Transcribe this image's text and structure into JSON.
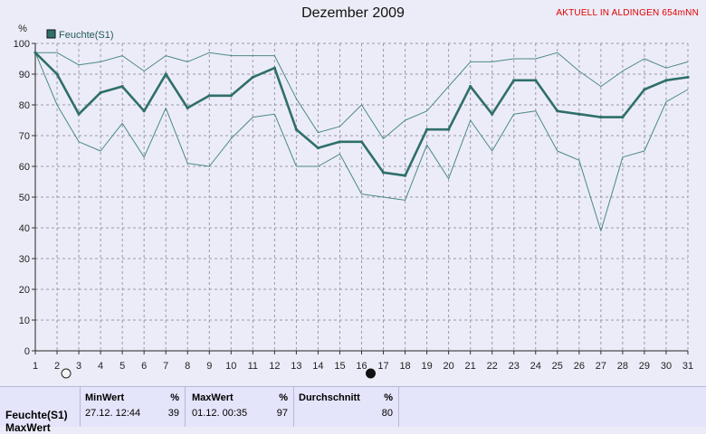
{
  "header": {
    "title": "Dezember 2009",
    "station": "AKTUELL IN ALDINGEN 654mNN"
  },
  "chart_data": {
    "type": "line",
    "title": "Dezember 2009",
    "ylabel": "%",
    "ylim": [
      0,
      100
    ],
    "xlim": [
      1,
      31
    ],
    "grid": true,
    "legend": "top-left",
    "x": [
      1,
      2,
      3,
      4,
      5,
      6,
      7,
      8,
      9,
      10,
      11,
      12,
      13,
      14,
      15,
      16,
      17,
      18,
      19,
      20,
      21,
      22,
      23,
      24,
      25,
      26,
      27,
      28,
      29,
      30,
      31
    ],
    "series": [
      {
        "name": "Feuchte(S1)",
        "color": "#2f6f6a",
        "values": [
          97,
          90,
          77,
          84,
          86,
          78,
          90,
          79,
          83,
          83,
          89,
          92,
          72,
          66,
          68,
          68,
          58,
          57,
          72,
          72,
          86,
          77,
          88,
          88,
          78,
          77,
          76,
          76,
          85,
          88,
          89
        ]
      },
      {
        "role": "max",
        "color": "#4a8a84",
        "values": [
          97,
          97,
          93,
          94,
          96,
          91,
          96,
          94,
          97,
          96,
          96,
          96,
          82,
          71,
          73,
          80,
          69,
          75,
          78,
          86,
          94,
          94,
          95,
          95,
          97,
          91,
          86,
          91,
          95,
          92,
          94
        ]
      },
      {
        "role": "min",
        "color": "#4a8a84",
        "values": [
          97,
          80,
          68,
          65,
          74,
          63,
          79,
          61,
          60,
          69,
          76,
          77,
          60,
          60,
          64,
          51,
          50,
          49,
          67,
          56,
          75,
          65,
          77,
          78,
          65,
          62,
          39,
          63,
          65,
          81,
          85
        ]
      }
    ],
    "moon_markers": [
      {
        "day": 2,
        "phase": "full-moon"
      },
      {
        "day": 16,
        "phase": "new-moon"
      }
    ]
  },
  "summary": {
    "series_name": "Feuchte(S1)",
    "series_name2": "MaxWert",
    "min_label": "MinWert",
    "min_unit": "%",
    "min_time": "27.12.  12:44",
    "min_value": "39",
    "max_label": "MaxWert",
    "max_unit": "%",
    "max_time": "01.12.  00:35",
    "max_value": "97",
    "avg_label": "Durchschnitt",
    "avg_unit": "%",
    "avg_value": "80"
  }
}
